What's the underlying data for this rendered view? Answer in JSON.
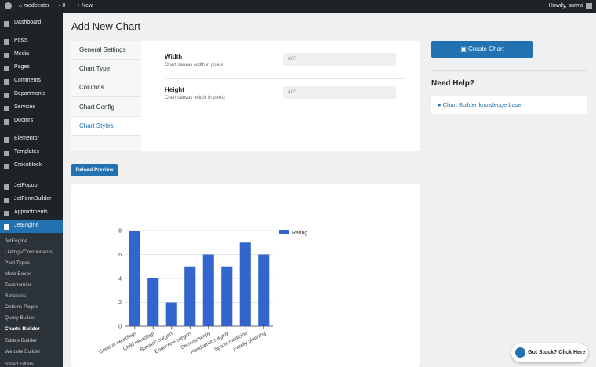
{
  "admin_bar": {
    "site": "medcenter",
    "comments": "0",
    "new": "New",
    "greeting": "Howdy, surma"
  },
  "sidebar": {
    "menu": [
      "Dashboard",
      "Posts",
      "Media",
      "Pages",
      "Comments",
      "Departments",
      "Services",
      "Doctors",
      "Elementor",
      "Templates",
      "Crocoblock",
      "JetPopup",
      "JetFormBuilder",
      "Appointments",
      "JetEngine"
    ],
    "submenu": [
      "JetEngine",
      "Listings/Components",
      "Post Types",
      "Meta Boxes",
      "Taxonomies",
      "Relations",
      "Options Pages",
      "Query Builder",
      "Charts Builder",
      "Tables Builder",
      "Website Builder",
      "Smart Filters"
    ]
  },
  "page": {
    "title": "Add New Chart",
    "tabs": [
      "General Settings",
      "Chart Type",
      "Columns",
      "Chart Config",
      "Chart Styles"
    ],
    "fields": [
      {
        "label": "Width",
        "description": "Chart canvas width in pixels",
        "value": "600"
      },
      {
        "label": "Height",
        "description": "Chart canvas height in pixels",
        "value": "400"
      }
    ],
    "create_button": "Create Chart",
    "help_title": "Need Help?",
    "help_link": "Chart Builder knowledge base",
    "reload_button": "Reload Preview",
    "stuck_button": "Got Stuck? Click Here"
  },
  "chart_preview": {
    "type": "bar",
    "categories": [
      "General neurology",
      "Child neurology",
      "Bariatric surgery",
      "Endocrine surgery",
      "Dermatoscopy",
      "Hand/wrist surgery",
      "Sports medicine",
      "Family planning"
    ],
    "series": [
      {
        "name": "Rating",
        "color": "#3366cc",
        "values": [
          8,
          4,
          2,
          5,
          6,
          5,
          7,
          6
        ]
      }
    ],
    "ylim": [
      0,
      8
    ],
    "yticks": [
      0,
      2,
      4,
      6,
      8
    ],
    "grid": true,
    "legend": "right"
  }
}
